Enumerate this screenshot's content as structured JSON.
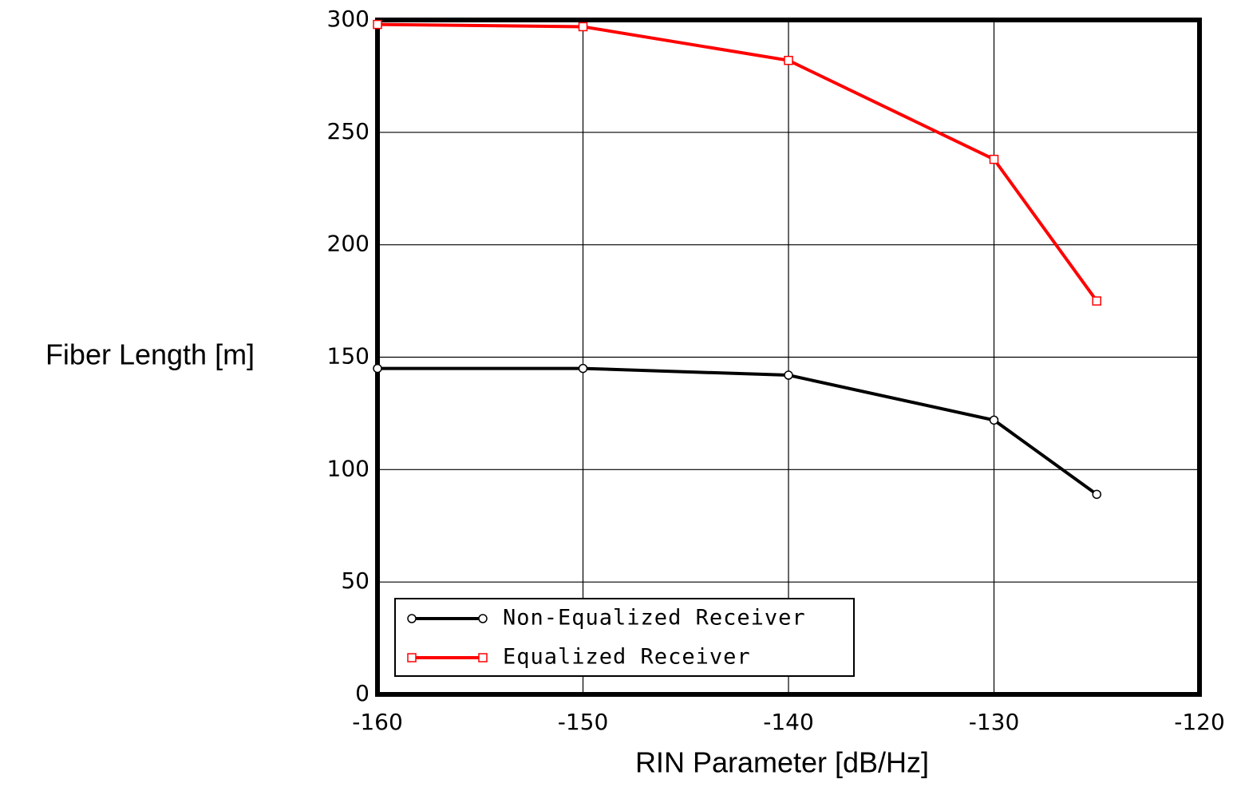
{
  "chart_data": {
    "type": "line",
    "xlabel": "RIN Parameter [dB/Hz]",
    "ylabel": "Fiber Length [m]",
    "series": [
      {
        "name": "Non-Equalized Receiver",
        "color": "#000000",
        "marker": "circle",
        "x": [
          -160,
          -150,
          -140,
          -130,
          -125
        ],
        "values": [
          145,
          145,
          142,
          122,
          89
        ]
      },
      {
        "name": "Equalized Receiver",
        "color": "#ff0000",
        "marker": "square",
        "x": [
          -160,
          -150,
          -140,
          -130,
          -125
        ],
        "values": [
          298,
          297,
          282,
          238,
          175
        ]
      }
    ],
    "xlim": [
      -160,
      -120
    ],
    "xticks": [
      -160,
      -150,
      -140,
      -130,
      -120
    ],
    "ylim": [
      0,
      300
    ],
    "yticks": [
      0,
      50,
      100,
      150,
      200,
      250,
      300
    ],
    "grid": true,
    "legend": "lower left"
  }
}
